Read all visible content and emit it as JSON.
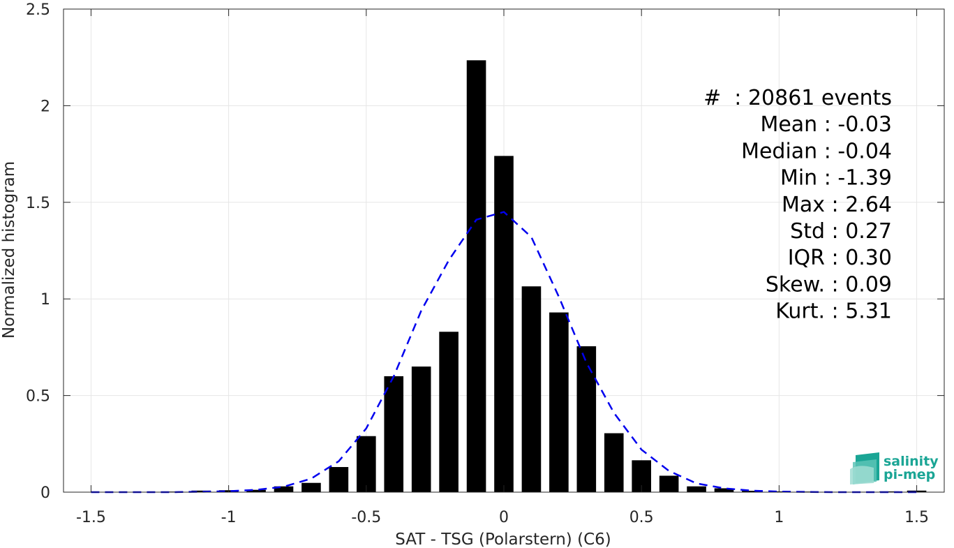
{
  "chart_data": {
    "type": "bar",
    "xlabel": "SAT - TSG (Polarstern) (C6)",
    "ylabel": "Normalized histogram",
    "xlim": [
      -1.6,
      1.6
    ],
    "ylim": [
      0,
      2.5
    ],
    "xticks": [
      -1.5,
      -1,
      -0.5,
      0,
      0.5,
      1,
      1.5
    ],
    "xtick_labels": [
      "-1.5",
      "-1",
      "-0.5",
      "0",
      "0.5",
      "1",
      "1.5"
    ],
    "yticks": [
      0,
      0.5,
      1,
      1.5,
      2,
      2.5
    ],
    "ytick_labels": [
      "0",
      "0.5",
      "1",
      "1.5",
      "2",
      "2.5"
    ],
    "grid": true,
    "bar_color": "#000000",
    "bar_width": 0.07,
    "bins": {
      "x": [
        -1.5,
        -1.4,
        -1.3,
        -1.2,
        -1.1,
        -1.0,
        -0.9,
        -0.8,
        -0.7,
        -0.6,
        -0.5,
        -0.4,
        -0.3,
        -0.2,
        -0.1,
        0.0,
        0.1,
        0.2,
        0.3,
        0.4,
        0.5,
        0.6,
        0.7,
        0.8,
        0.9,
        1.0,
        1.1,
        1.2,
        1.3,
        1.4,
        1.5
      ],
      "values": [
        0.0,
        0.0,
        0.0,
        0.003,
        0.008,
        0.01,
        0.012,
        0.03,
        0.048,
        0.13,
        0.29,
        0.6,
        0.65,
        0.83,
        2.235,
        1.74,
        1.065,
        0.93,
        0.755,
        0.305,
        0.165,
        0.085,
        0.03,
        0.02,
        0.007,
        0.004,
        0.003,
        0.002,
        0.002,
        0.004,
        0.008
      ]
    },
    "fit_curve": {
      "style": "dashed",
      "color": "#0000ee",
      "x": [
        -1.5,
        -1.4,
        -1.3,
        -1.2,
        -1.1,
        -1.0,
        -0.9,
        -0.8,
        -0.7,
        -0.6,
        -0.5,
        -0.4,
        -0.3,
        -0.2,
        -0.1,
        0.0,
        0.1,
        0.2,
        0.3,
        0.4,
        0.5,
        0.6,
        0.7,
        0.8,
        0.9,
        1.0,
        1.1,
        1.2,
        1.3,
        1.4,
        1.5
      ],
      "y": [
        0.0,
        0.0,
        0.0,
        0.0,
        0.002,
        0.005,
        0.012,
        0.028,
        0.07,
        0.16,
        0.33,
        0.6,
        0.94,
        1.2,
        1.41,
        1.45,
        1.32,
        1.01,
        0.67,
        0.41,
        0.22,
        0.11,
        0.045,
        0.02,
        0.008,
        0.003,
        0.001,
        0.0,
        0.0,
        0.0,
        0.0
      ]
    },
    "stats": [
      "#  : 20861 events",
      "Mean : -0.03",
      "Median : -0.04",
      "Min : -1.39",
      "Max : 2.64",
      "Std : 0.27",
      "IQR : 0.30",
      "Skew. : 0.09",
      "Kurt. : 5.31"
    ]
  },
  "logo": {
    "line1": "salinity",
    "line2": "pi-mep",
    "color": "#1aa595"
  }
}
